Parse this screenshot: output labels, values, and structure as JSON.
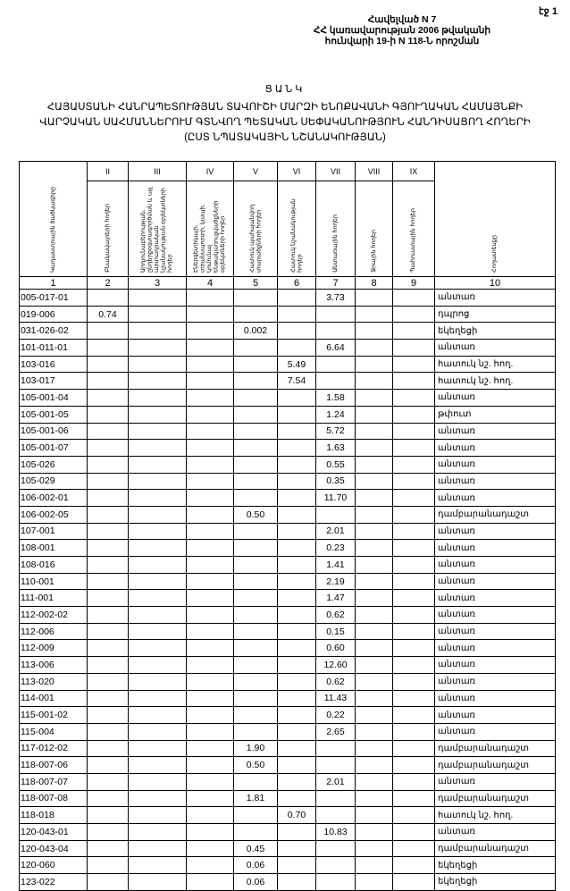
{
  "page_label": "էջ 1",
  "annex": {
    "line1": "Հավելված N 7",
    "line2": "ՀՀ կառավարության 2006 թվականի",
    "line3": "հունվարի 19-ի N 118-Ն որոշման"
  },
  "title": {
    "heading": "ՑԱՆԿ",
    "line1": "ՀԱՅԱՍՏԱՆԻ ՀԱՆՐԱՊԵՏՈՒԹՅԱՆ ՏԱՎՈՒՇԻ ՄԱՐԶԻ ԵՆՈՔԱՎԱՆԻ ԳՅՈՒՂԱԿԱՆ ՀԱՄԱՅՆՔԻ",
    "line2": "ՎԱՐՉԱԿԱՆ ՍԱՀՄԱՆՆԵՐՈՒՄ ԳՏՆՎՈՂ ՊԵՏԱԿԱՆ ՍԵՓԱԿԱՆՈՒԹՅՈՒՆ ՀԱՆԴԻՍԱՑՈՂ ՀՈՂԵՐԻ",
    "line3": "(ԸՍՏ ՆՊԱՏԱԿԱՅԻՆ ՆՇԱՆԱԿՈՒԹՅԱՆ)"
  },
  "table": {
    "roman": [
      "II",
      "III",
      "IV",
      "V",
      "VI",
      "VII",
      "VIII",
      "IX"
    ],
    "headers": [
      "Կադաստրային ծածկագիրը",
      "Բնակավայրերի հողեր",
      "Արդյունաբերության, ընդերքօգտագործման և այլ արտադրական նշանակության օբյեկտների հողեր",
      "Էներգետիկայի, տրանսպորտի, կապի, կոմունալ ենթակառուցվածքների օբյեկտների հողեր",
      "Հատուկ պահպանվող տարածքների հողեր",
      "Հատուկ նշանակության հողեր",
      "Անտառային հողեր",
      "Ջրային հողեր",
      "Պահուստային հողեր",
      "Հողատեսքը"
    ],
    "numbers": [
      "1",
      "2",
      "3",
      "4",
      "5",
      "6",
      "7",
      "8",
      "9",
      "10"
    ],
    "rows": [
      {
        "code": "005-017-01",
        "v": [
          "",
          "",
          "",
          "",
          "",
          "3.73",
          "",
          ""
        ],
        "land": "անտառ"
      },
      {
        "code": "019-006",
        "v": [
          "0.74",
          "",
          "",
          "",
          "",
          "",
          "",
          ""
        ],
        "land": "դպրոց"
      },
      {
        "code": "031-026-02",
        "v": [
          "",
          "",
          "",
          "0.002",
          "",
          "",
          "",
          ""
        ],
        "land": "եկեղեցի"
      },
      {
        "code": "101-011-01",
        "v": [
          "",
          "",
          "",
          "",
          "",
          "6.64",
          "",
          ""
        ],
        "land": "անտառ"
      },
      {
        "code": "103-016",
        "v": [
          "",
          "",
          "",
          "",
          "5.49",
          "",
          "",
          ""
        ],
        "land": "հատուկ նշ. հող."
      },
      {
        "code": "103-017",
        "v": [
          "",
          "",
          "",
          "",
          "7.54",
          "",
          "",
          ""
        ],
        "land": "հատուկ նշ. հող."
      },
      {
        "code": "105-001-04",
        "v": [
          "",
          "",
          "",
          "",
          "",
          "1.58",
          "",
          ""
        ],
        "land": "անտառ"
      },
      {
        "code": "105-001-05",
        "v": [
          "",
          "",
          "",
          "",
          "",
          "1.24",
          "",
          ""
        ],
        "land": "թփուտ"
      },
      {
        "code": "105-001-06",
        "v": [
          "",
          "",
          "",
          "",
          "",
          "5.72",
          "",
          ""
        ],
        "land": "անտառ"
      },
      {
        "code": "105-001-07",
        "v": [
          "",
          "",
          "",
          "",
          "",
          "1.63",
          "",
          ""
        ],
        "land": "անտառ"
      },
      {
        "code": "105-026",
        "v": [
          "",
          "",
          "",
          "",
          "",
          "0.55",
          "",
          ""
        ],
        "land": "անտառ"
      },
      {
        "code": "105-029",
        "v": [
          "",
          "",
          "",
          "",
          "",
          "0.35",
          "",
          ""
        ],
        "land": "անտառ"
      },
      {
        "code": "106-002-01",
        "v": [
          "",
          "",
          "",
          "",
          "",
          "11.70",
          "",
          ""
        ],
        "land": "անտառ"
      },
      {
        "code": "106-002-05",
        "v": [
          "",
          "",
          "",
          "0.50",
          "",
          "",
          "",
          ""
        ],
        "land": "դամբարանադաշտ"
      },
      {
        "code": "107-001",
        "v": [
          "",
          "",
          "",
          "",
          "",
          "2.01",
          "",
          ""
        ],
        "land": "անտառ"
      },
      {
        "code": "108-001",
        "v": [
          "",
          "",
          "",
          "",
          "",
          "0.23",
          "",
          ""
        ],
        "land": "անտառ"
      },
      {
        "code": "108-016",
        "v": [
          "",
          "",
          "",
          "",
          "",
          "1.41",
          "",
          ""
        ],
        "land": "անտառ"
      },
      {
        "code": "110-001",
        "v": [
          "",
          "",
          "",
          "",
          "",
          "2.19",
          "",
          ""
        ],
        "land": "անտառ"
      },
      {
        "code": "111-001",
        "v": [
          "",
          "",
          "",
          "",
          "",
          "1.47",
          "",
          ""
        ],
        "land": "անտառ"
      },
      {
        "code": "112-002-02",
        "v": [
          "",
          "",
          "",
          "",
          "",
          "0.62",
          "",
          ""
        ],
        "land": "անտառ"
      },
      {
        "code": "112-006",
        "v": [
          "",
          "",
          "",
          "",
          "",
          "0.15",
          "",
          ""
        ],
        "land": "անտառ"
      },
      {
        "code": "112-009",
        "v": [
          "",
          "",
          "",
          "",
          "",
          "0.60",
          "",
          ""
        ],
        "land": "անտառ"
      },
      {
        "code": "113-006",
        "v": [
          "",
          "",
          "",
          "",
          "",
          "12.60",
          "",
          ""
        ],
        "land": "անտառ"
      },
      {
        "code": "113-020",
        "v": [
          "",
          "",
          "",
          "",
          "",
          "0.62",
          "",
          ""
        ],
        "land": "անտառ"
      },
      {
        "code": "114-001",
        "v": [
          "",
          "",
          "",
          "",
          "",
          "11.43",
          "",
          ""
        ],
        "land": "անտառ"
      },
      {
        "code": "115-001-02",
        "v": [
          "",
          "",
          "",
          "",
          "",
          "0.22",
          "",
          ""
        ],
        "land": "անտառ"
      },
      {
        "code": "115-004",
        "v": [
          "",
          "",
          "",
          "",
          "",
          "2.65",
          "",
          ""
        ],
        "land": "անտառ"
      },
      {
        "code": "117-012-02",
        "v": [
          "",
          "",
          "",
          "1.90",
          "",
          "",
          "",
          ""
        ],
        "land": "դամբարանադաշտ"
      },
      {
        "code": "118-007-06",
        "v": [
          "",
          "",
          "",
          "0.50",
          "",
          "",
          "",
          ""
        ],
        "land": "դամբարանադաշտ"
      },
      {
        "code": "118-007-07",
        "v": [
          "",
          "",
          "",
          "",
          "",
          "2.01",
          "",
          ""
        ],
        "land": "անտառ"
      },
      {
        "code": "118-007-08",
        "v": [
          "",
          "",
          "",
          "1.81",
          "",
          "",
          "",
          ""
        ],
        "land": "դամբարանադաշտ"
      },
      {
        "code": "118-018",
        "v": [
          "",
          "",
          "",
          "",
          "0.70",
          "",
          "",
          ""
        ],
        "land": "հատուկ նշ. հող."
      },
      {
        "code": "120-043-01",
        "v": [
          "",
          "",
          "",
          "",
          "",
          "10.83",
          "",
          ""
        ],
        "land": "անտառ"
      },
      {
        "code": "120-043-04",
        "v": [
          "",
          "",
          "",
          "0.45",
          "",
          "",
          "",
          ""
        ],
        "land": "դամբարանադաշտ"
      },
      {
        "code": "120-060",
        "v": [
          "",
          "",
          "",
          "0.06",
          "",
          "",
          "",
          ""
        ],
        "land": "եկեղեցի"
      },
      {
        "code": "123-022",
        "v": [
          "",
          "",
          "",
          "0.06",
          "",
          "",
          "",
          ""
        ],
        "land": "եկեղեցի"
      }
    ]
  }
}
